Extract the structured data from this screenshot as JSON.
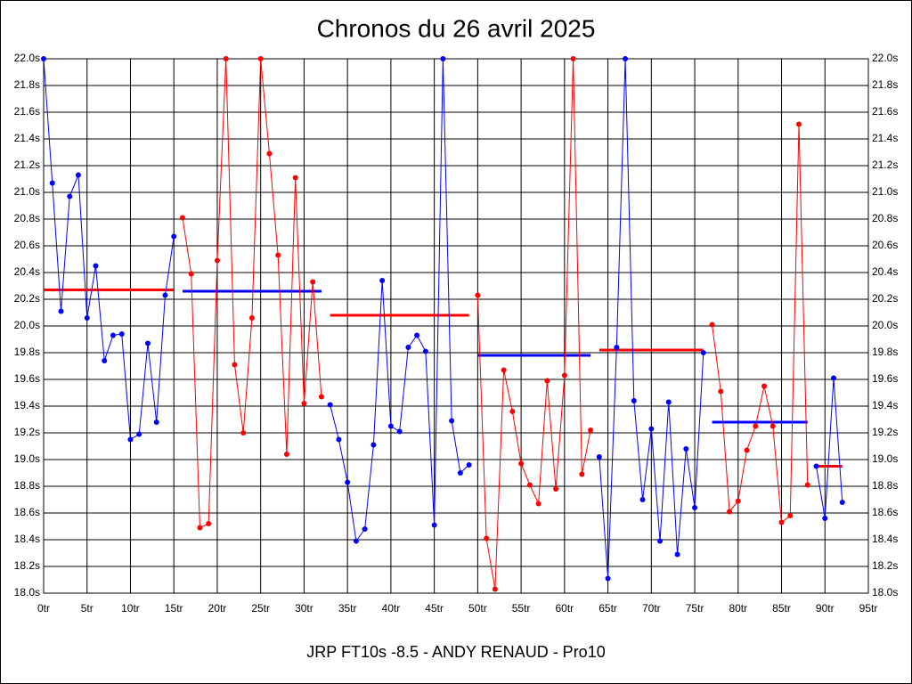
{
  "chart_data": {
    "type": "line",
    "title": "Chronos du 26 avril 2025",
    "subtitle": "JRP FT10s -8.5 - ANDY RENAUD - Pro10",
    "xlim": [
      0,
      95
    ],
    "ylim": [
      18,
      22
    ],
    "grid": true,
    "xticks": [
      {
        "value": 0,
        "label": "0tr"
      },
      {
        "value": 5,
        "label": "5tr"
      },
      {
        "value": 10,
        "label": "10tr"
      },
      {
        "value": 15,
        "label": "15tr"
      },
      {
        "value": 20,
        "label": "20tr"
      },
      {
        "value": 25,
        "label": "25tr"
      },
      {
        "value": 30,
        "label": "30tr"
      },
      {
        "value": 35,
        "label": "35tr"
      },
      {
        "value": 40,
        "label": "40tr"
      },
      {
        "value": 45,
        "label": "45tr"
      },
      {
        "value": 50,
        "label": "50tr"
      },
      {
        "value": 55,
        "label": "55tr"
      },
      {
        "value": 60,
        "label": "60tr"
      },
      {
        "value": 65,
        "label": "65tr"
      },
      {
        "value": 70,
        "label": "70tr"
      },
      {
        "value": 75,
        "label": "75tr"
      },
      {
        "value": 80,
        "label": "80tr"
      },
      {
        "value": 85,
        "label": "85tr"
      },
      {
        "value": 90,
        "label": "90tr"
      },
      {
        "value": 95,
        "label": "95tr"
      }
    ],
    "yticks": [
      {
        "value": 18.0,
        "label": "18.0s"
      },
      {
        "value": 18.2,
        "label": "18.2s"
      },
      {
        "value": 18.4,
        "label": "18.4s"
      },
      {
        "value": 18.6,
        "label": "18.6s"
      },
      {
        "value": 18.8,
        "label": "18.8s"
      },
      {
        "value": 19.0,
        "label": "19.0s"
      },
      {
        "value": 19.2,
        "label": "19.2s"
      },
      {
        "value": 19.4,
        "label": "19.4s"
      },
      {
        "value": 19.6,
        "label": "19.6s"
      },
      {
        "value": 19.8,
        "label": "19.8s"
      },
      {
        "value": 20.0,
        "label": "20.0s"
      },
      {
        "value": 20.2,
        "label": "20.2s"
      },
      {
        "value": 20.4,
        "label": "20.4s"
      },
      {
        "value": 20.6,
        "label": "20.6s"
      },
      {
        "value": 20.8,
        "label": "20.8s"
      },
      {
        "value": 21.0,
        "label": "21.0s"
      },
      {
        "value": 21.2,
        "label": "21.2s"
      },
      {
        "value": 21.4,
        "label": "21.4s"
      },
      {
        "value": 21.6,
        "label": "21.6s"
      },
      {
        "value": 21.8,
        "label": "21.8s"
      },
      {
        "value": 22.0,
        "label": "22.0s"
      }
    ],
    "series": [
      {
        "color": "#0000ff",
        "x": [
          0,
          1,
          2,
          3,
          4,
          5,
          6,
          7,
          8,
          9,
          10,
          11,
          12,
          13,
          14,
          15
        ],
        "values": [
          22.0,
          21.07,
          20.11,
          20.97,
          21.13,
          20.06,
          20.45,
          19.74,
          19.93,
          19.94,
          19.15,
          19.19,
          19.87,
          19.28,
          20.23,
          20.67
        ]
      },
      {
        "color": "#ff0000",
        "x": [
          16,
          17,
          18,
          19,
          20,
          21,
          22,
          23,
          24,
          25,
          26,
          27,
          28,
          29,
          30,
          31,
          32
        ],
        "values": [
          20.81,
          20.39,
          18.49,
          18.52,
          20.49,
          22.0,
          19.71,
          19.2,
          20.06,
          22.0,
          21.29,
          20.53,
          19.04,
          21.11,
          19.42,
          20.33,
          19.47
        ]
      },
      {
        "color": "#0000ff",
        "x": [
          33,
          34,
          35,
          36,
          37,
          38,
          39,
          40,
          41,
          42,
          43,
          44,
          45,
          46,
          47,
          48,
          49
        ],
        "values": [
          19.41,
          19.15,
          18.83,
          18.39,
          18.48,
          19.11,
          20.34,
          19.25,
          19.21,
          19.84,
          19.93,
          19.81,
          18.51,
          22.0,
          19.29,
          18.9,
          18.96
        ]
      },
      {
        "color": "#ff0000",
        "x": [
          50,
          51,
          52,
          53,
          54,
          55,
          56,
          57,
          58,
          59,
          60,
          61,
          62,
          63
        ],
        "values": [
          20.23,
          18.41,
          18.03,
          19.67,
          19.36,
          18.97,
          18.81,
          18.67,
          19.59,
          18.78,
          19.63,
          22.0,
          18.89,
          19.22
        ]
      },
      {
        "color": "#0000ff",
        "x": [
          64,
          65,
          66,
          67,
          68,
          69,
          70,
          71,
          72,
          73,
          74,
          75,
          76
        ],
        "values": [
          19.02,
          18.11,
          19.84,
          22.0,
          19.44,
          18.7,
          19.23,
          18.39,
          19.43,
          18.29,
          19.08,
          18.64,
          19.8
        ]
      },
      {
        "color": "#ff0000",
        "x": [
          77,
          78,
          79,
          80,
          81,
          82,
          83,
          84,
          85,
          86,
          87,
          88
        ],
        "values": [
          20.01,
          19.51,
          18.61,
          18.69,
          19.07,
          19.25,
          19.55,
          19.25,
          18.53,
          18.58,
          21.51,
          18.81
        ]
      },
      {
        "color": "#0000ff",
        "x": [
          89,
          90,
          91,
          92
        ],
        "values": [
          18.95,
          18.56,
          19.61,
          18.68
        ]
      }
    ],
    "averages": [
      {
        "start": 0,
        "end": 15,
        "value": 20.27,
        "color": "#ff0000"
      },
      {
        "start": 16,
        "end": 32,
        "value": 20.26,
        "color": "#0000ff"
      },
      {
        "start": 33,
        "end": 49,
        "value": 20.08,
        "color": "#ff0000"
      },
      {
        "start": 50,
        "end": 63,
        "value": 19.78,
        "color": "#0000ff"
      },
      {
        "start": 64,
        "end": 76,
        "value": 19.82,
        "color": "#ff0000"
      },
      {
        "start": 77,
        "end": 88,
        "value": 19.28,
        "color": "#0000ff"
      },
      {
        "start": 89,
        "end": 92,
        "value": 18.95,
        "color": "#ff0000"
      }
    ]
  }
}
